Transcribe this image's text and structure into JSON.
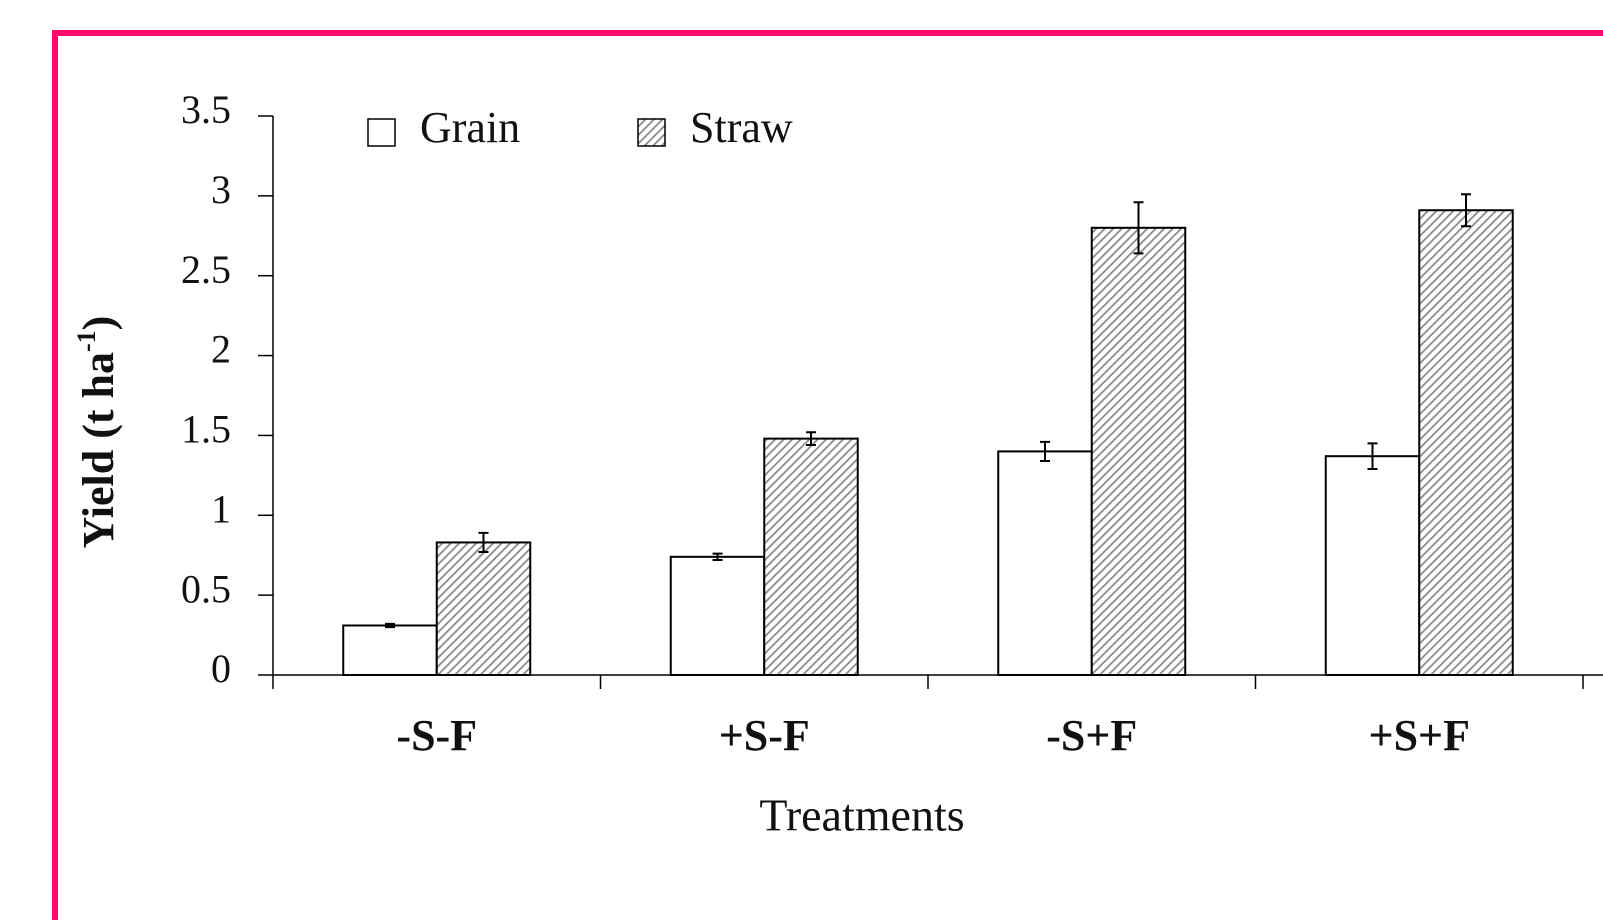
{
  "chart_data": {
    "type": "bar",
    "x_label": "Treatments",
    "y_label": {
      "text": "Yield (t ha",
      "superscript": "-1",
      "close": ")"
    },
    "categories": [
      "-S-F",
      "+S-F",
      "-S+F",
      "+S+F"
    ],
    "series": [
      {
        "name": "Grain",
        "color": "#ffffff",
        "hatch": false,
        "values": [
          0.31,
          0.74,
          1.4,
          1.37
        ],
        "errors": [
          0.01,
          0.02,
          0.06,
          0.08
        ]
      },
      {
        "name": "Straw",
        "color": "#c8c8c8",
        "hatch": true,
        "values": [
          0.83,
          1.48,
          2.8,
          2.91
        ],
        "errors": [
          0.06,
          0.04,
          0.16,
          0.1
        ]
      }
    ],
    "ylim": [
      0,
      3.5
    ],
    "yticks": [
      0,
      0.5,
      1,
      1.5,
      2,
      2.5,
      3,
      3.5
    ],
    "grid": false,
    "legend": "top-left"
  }
}
